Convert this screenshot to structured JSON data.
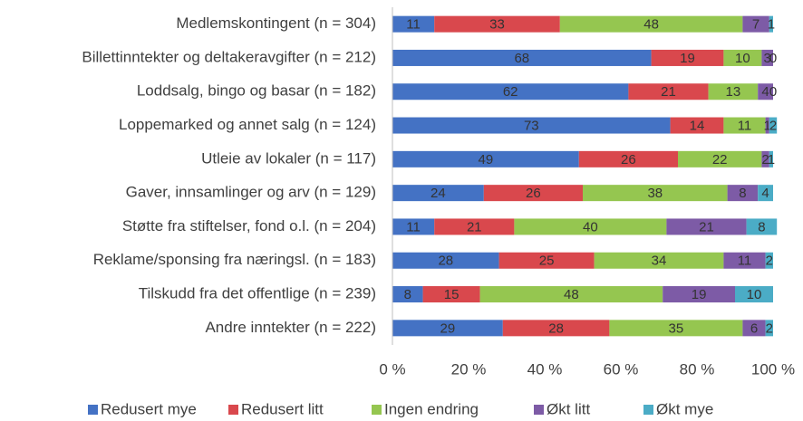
{
  "chart_data": {
    "type": "stacked_barh",
    "categories": [
      "Medlemskontingent (n = 304)",
      "Billettinntekter og deltakeravgifter (n = 212)",
      "Loddsalg, bingo og basar (n = 182)",
      "Loppemarked og annet salg (n = 124)",
      "Utleie av lokaler (n = 117)",
      "Gaver, innsamlinger og arv (n = 129)",
      "Støtte fra stiftelser, fond o.l. (n = 204)",
      "Reklame/sponsing fra næringsl. (n = 183)",
      "Tilskudd fra det offentlige (n = 239)",
      "Andre inntekter (n = 222)"
    ],
    "series": [
      {
        "name": "Redusert mye",
        "color": "#4472c4",
        "values": [
          11,
          68,
          62,
          73,
          49,
          24,
          11,
          28,
          8,
          29
        ]
      },
      {
        "name": "Redusert litt",
        "color": "#d9484d",
        "values": [
          33,
          19,
          21,
          14,
          26,
          26,
          21,
          25,
          15,
          28
        ]
      },
      {
        "name": "Ingen endring",
        "color": "#95c650",
        "values": [
          48,
          10,
          13,
          11,
          22,
          38,
          40,
          34,
          48,
          35
        ]
      },
      {
        "name": "Økt litt",
        "color": "#7d5ba6",
        "values": [
          7,
          3,
          4,
          1,
          2,
          8,
          21,
          11,
          19,
          6
        ]
      },
      {
        "name": "Økt mye",
        "color": "#4bacc6",
        "values": [
          1,
          0,
          0,
          2,
          1,
          4,
          8,
          2,
          10,
          2
        ]
      }
    ],
    "xlim": [
      0,
      100
    ],
    "xticks": [
      {
        "value": 0,
        "label": "0 %"
      },
      {
        "value": 20,
        "label": "20 %"
      },
      {
        "value": 40,
        "label": "40 %"
      },
      {
        "value": 60,
        "label": "60 %"
      },
      {
        "value": 80,
        "label": "80 %"
      },
      {
        "value": 100,
        "label": "100 %"
      }
    ],
    "legend": "bottom"
  }
}
